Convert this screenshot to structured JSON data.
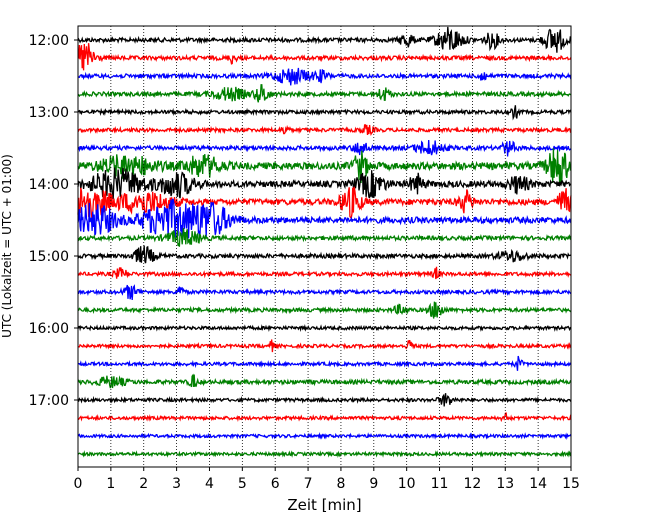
{
  "chart_data": {
    "type": "line",
    "title": "",
    "xlabel": "Zeit  [min]",
    "ylabel": "UTC (Lokalzeit = UTC + 01:00)",
    "xlim": [
      0,
      15
    ],
    "x_ticks": [
      "0",
      "1",
      "2",
      "3",
      "4",
      "5",
      "6",
      "7",
      "8",
      "9",
      "10",
      "11",
      "12",
      "13",
      "14",
      "15"
    ],
    "y_ticks": [
      {
        "label": "12:00",
        "row": 0
      },
      {
        "label": "13:00",
        "row": 4
      },
      {
        "label": "14:00",
        "row": 8
      },
      {
        "label": "15:00",
        "row": 12
      },
      {
        "label": "16:00",
        "row": 16
      },
      {
        "label": "17:00",
        "row": 20
      }
    ],
    "grid": "vertical-dotted",
    "colors": [
      "#000000",
      "#ff0000",
      "#0000ff",
      "#008000"
    ],
    "rows": [
      {
        "start": "12:00",
        "color": "#000000",
        "noise": 2.0,
        "events": [
          [
            10.0,
            0.2,
            7
          ],
          [
            11.3,
            0.4,
            12
          ],
          [
            12.6,
            0.2,
            8
          ],
          [
            14.5,
            0.3,
            13
          ]
        ]
      },
      {
        "start": "12:15",
        "color": "#ff0000",
        "noise": 2.0,
        "events": [
          [
            0.2,
            0.3,
            16
          ],
          [
            4.7,
            0.1,
            5
          ]
        ]
      },
      {
        "start": "12:30",
        "color": "#0000ff",
        "noise": 2.0,
        "events": [
          [
            6.5,
            0.5,
            8
          ],
          [
            7.4,
            0.2,
            5
          ],
          [
            12.3,
            0.1,
            7
          ]
        ]
      },
      {
        "start": "12:45",
        "color": "#008000",
        "noise": 2.0,
        "events": [
          [
            4.6,
            0.5,
            6
          ],
          [
            5.6,
            0.2,
            9
          ],
          [
            9.3,
            0.2,
            6
          ]
        ]
      },
      {
        "start": "13:00",
        "color": "#000000",
        "noise": 1.8,
        "events": [
          [
            13.3,
            0.1,
            6
          ]
        ]
      },
      {
        "start": "13:15",
        "color": "#ff0000",
        "noise": 1.8,
        "events": [
          [
            6.3,
            0.1,
            5
          ],
          [
            8.8,
            0.2,
            4
          ]
        ]
      },
      {
        "start": "13:30",
        "color": "#0000ff",
        "noise": 2.0,
        "events": [
          [
            8.6,
            0.2,
            7
          ],
          [
            10.7,
            0.4,
            7
          ],
          [
            13.1,
            0.2,
            7
          ]
        ]
      },
      {
        "start": "13:45",
        "color": "#008000",
        "noise": 3.5,
        "events": [
          [
            1.5,
            0.8,
            10
          ],
          [
            3.8,
            0.5,
            10
          ],
          [
            8.6,
            0.2,
            14
          ],
          [
            14.6,
            0.3,
            20
          ]
        ]
      },
      {
        "start": "14:00",
        "color": "#000000",
        "noise": 3.0,
        "events": [
          [
            1.2,
            0.8,
            14
          ],
          [
            3.0,
            0.5,
            12
          ],
          [
            8.9,
            0.4,
            12
          ],
          [
            10.3,
            0.2,
            9
          ],
          [
            13.4,
            0.3,
            8
          ]
        ]
      },
      {
        "start": "14:15",
        "color": "#ff0000",
        "noise": 3.0,
        "events": [
          [
            0.3,
            0.6,
            16
          ],
          [
            2.0,
            0.8,
            10
          ],
          [
            8.3,
            0.3,
            14
          ],
          [
            11.8,
            0.2,
            10
          ],
          [
            14.8,
            0.2,
            12
          ]
        ]
      },
      {
        "start": "14:30",
        "color": "#0000ff",
        "noise": 3.0,
        "events": [
          [
            0.5,
            0.6,
            16
          ],
          [
            2.8,
            0.8,
            18
          ],
          [
            4.0,
            0.6,
            16
          ]
        ]
      },
      {
        "start": "14:45",
        "color": "#008000",
        "noise": 2.0,
        "events": [
          [
            3.2,
            0.5,
            8
          ]
        ]
      },
      {
        "start": "15:00",
        "color": "#000000",
        "noise": 2.0,
        "events": [
          [
            2.0,
            0.3,
            9
          ],
          [
            13.2,
            0.4,
            5
          ]
        ]
      },
      {
        "start": "15:15",
        "color": "#ff0000",
        "noise": 1.8,
        "events": [
          [
            1.3,
            0.2,
            5
          ],
          [
            10.9,
            0.1,
            6
          ]
        ]
      },
      {
        "start": "15:30",
        "color": "#0000ff",
        "noise": 1.8,
        "events": [
          [
            1.6,
            0.2,
            7
          ],
          [
            3.1,
            0.1,
            6
          ]
        ]
      },
      {
        "start": "15:45",
        "color": "#008000",
        "noise": 1.8,
        "events": [
          [
            10.9,
            0.2,
            9
          ],
          [
            9.8,
            0.2,
            4
          ]
        ]
      },
      {
        "start": "16:00",
        "color": "#000000",
        "noise": 1.6,
        "events": []
      },
      {
        "start": "16:15",
        "color": "#ff0000",
        "noise": 1.6,
        "events": [
          [
            5.9,
            0.1,
            5
          ],
          [
            10.1,
            0.1,
            6
          ]
        ]
      },
      {
        "start": "16:30",
        "color": "#0000ff",
        "noise": 1.6,
        "events": [
          [
            13.4,
            0.1,
            7
          ]
        ]
      },
      {
        "start": "16:45",
        "color": "#008000",
        "noise": 2.0,
        "events": [
          [
            1.0,
            0.4,
            5
          ],
          [
            3.5,
            0.1,
            7
          ]
        ]
      },
      {
        "start": "17:00",
        "color": "#000000",
        "noise": 1.6,
        "events": [
          [
            11.2,
            0.2,
            6
          ]
        ]
      },
      {
        "start": "17:15",
        "color": "#ff0000",
        "noise": 1.6,
        "events": [
          [
            13.0,
            0.1,
            4
          ]
        ]
      },
      {
        "start": "17:30",
        "color": "#0000ff",
        "noise": 1.5,
        "events": []
      },
      {
        "start": "17:45",
        "color": "#008000",
        "noise": 1.5,
        "events": []
      }
    ]
  }
}
